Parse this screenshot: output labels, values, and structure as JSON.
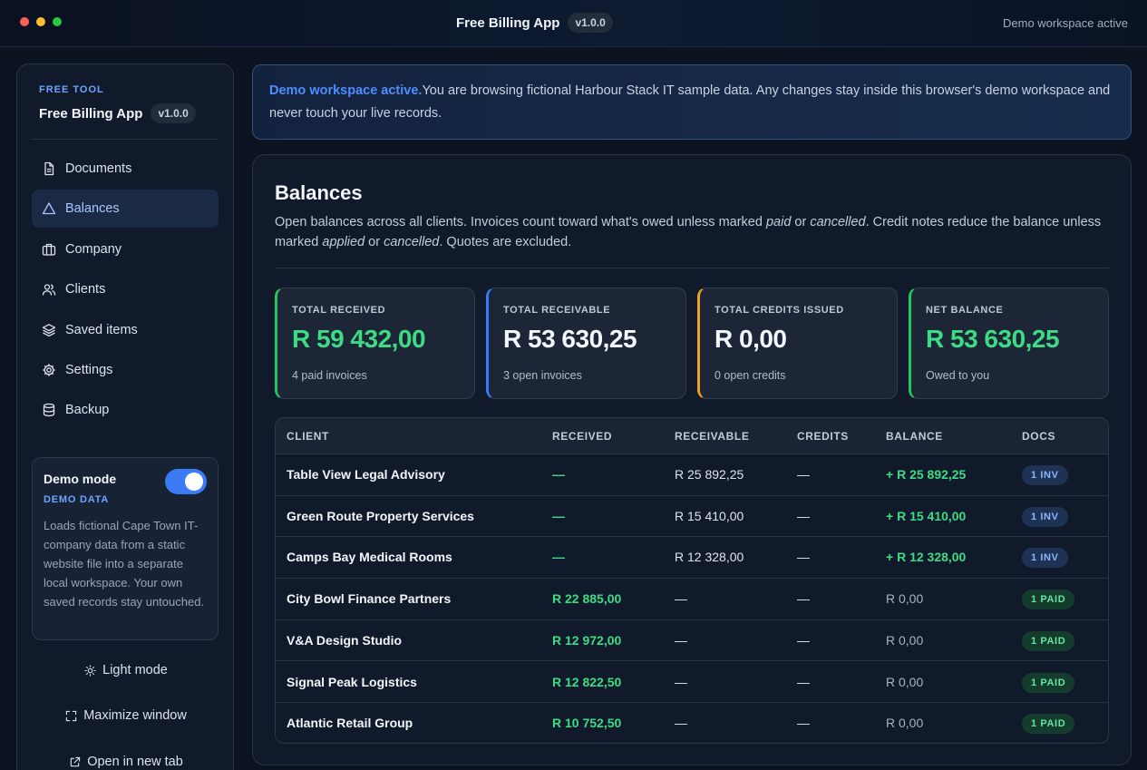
{
  "window": {
    "title": "Free Billing App",
    "version": "v1.0.0",
    "status": "Demo workspace active"
  },
  "sidebar": {
    "eyebrow": "FREE TOOL",
    "brand": "Free Billing App",
    "version": "v1.0.0",
    "nav": [
      {
        "label": "Documents",
        "icon": "document-icon"
      },
      {
        "label": "Balances",
        "icon": "triangle-icon",
        "active": true
      },
      {
        "label": "Company",
        "icon": "briefcase-icon"
      },
      {
        "label": "Clients",
        "icon": "users-icon"
      },
      {
        "label": "Saved items",
        "icon": "layers-icon"
      },
      {
        "label": "Settings",
        "icon": "gear-icon"
      },
      {
        "label": "Backup",
        "icon": "database-icon"
      }
    ],
    "demo": {
      "title": "Demo mode",
      "subtitle": "DEMO DATA",
      "enabled": true,
      "description": "Loads fictional Cape Town IT-company data from a static website file into a separate local workspace. Your own saved records stay untouched."
    },
    "light_mode": "Light mode",
    "maximize": "Maximize window",
    "open_tab": "Open in new tab"
  },
  "banner": {
    "strong": "Demo workspace active.",
    "text": "You are browsing fictional Harbour Stack IT sample data. Any changes stay inside this browser's demo workspace and never touch your live records."
  },
  "balances": {
    "title": "Balances",
    "desc": {
      "p1": "Open balances across all clients. Invoices count toward what's owed unless marked ",
      "e1": "paid",
      "p2": " or ",
      "e2": "cancelled",
      "p3": ". Credit notes reduce the balance unless marked ",
      "e3": "applied",
      "p4": " or ",
      "e4": "cancelled",
      "p5": ". Quotes are excluded."
    },
    "stats": [
      {
        "label": "TOTAL RECEIVED",
        "value": "R 59 432,00",
        "sub": "4 paid invoices",
        "accent": "#22c55e",
        "value_color": "#3ddc84"
      },
      {
        "label": "TOTAL RECEIVABLE",
        "value": "R 53 630,25",
        "sub": "3 open invoices",
        "accent": "#3b7cf6",
        "value_color": "#f3f6fb"
      },
      {
        "label": "TOTAL CREDITS ISSUED",
        "value": "R 0,00",
        "sub": "0 open credits",
        "accent": "#f0a020",
        "value_color": "#f3f6fb"
      },
      {
        "label": "NET BALANCE",
        "value": "R 53 630,25",
        "sub": "Owed to you",
        "accent": "#22c55e",
        "value_color": "#3ddc84"
      }
    ],
    "columns": [
      "CLIENT",
      "RECEIVED",
      "RECEIVABLE",
      "CREDITS",
      "BALANCE",
      "DOCS"
    ],
    "rows": [
      {
        "client": "Table View Legal Advisory",
        "received": "—",
        "receivable": "R 25 892,25",
        "credits": "—",
        "balance": "+ R 25 892,25",
        "docs": "1 INV",
        "docs_type": "inv"
      },
      {
        "client": "Green Route Property Services",
        "received": "—",
        "receivable": "R 15 410,00",
        "credits": "—",
        "balance": "+ R 15 410,00",
        "docs": "1 INV",
        "docs_type": "inv"
      },
      {
        "client": "Camps Bay Medical Rooms",
        "received": "—",
        "receivable": "R 12 328,00",
        "credits": "—",
        "balance": "+ R 12 328,00",
        "docs": "1 INV",
        "docs_type": "inv"
      },
      {
        "client": "City Bowl Finance Partners",
        "received": "R 22 885,00",
        "receivable": "—",
        "credits": "—",
        "balance": "R 0,00",
        "docs": "1 PAID",
        "docs_type": "paid"
      },
      {
        "client": "V&A Design Studio",
        "received": "R 12 972,00",
        "receivable": "—",
        "credits": "—",
        "balance": "R 0,00",
        "docs": "1 PAID",
        "docs_type": "paid"
      },
      {
        "client": "Signal Peak Logistics",
        "received": "R 12 822,50",
        "receivable": "—",
        "credits": "—",
        "balance": "R 0,00",
        "docs": "1 PAID",
        "docs_type": "paid"
      },
      {
        "client": "Atlantic Retail Group",
        "received": "R 10 752,50",
        "receivable": "—",
        "credits": "—",
        "balance": "R 0,00",
        "docs": "1 PAID",
        "docs_type": "paid"
      }
    ]
  }
}
